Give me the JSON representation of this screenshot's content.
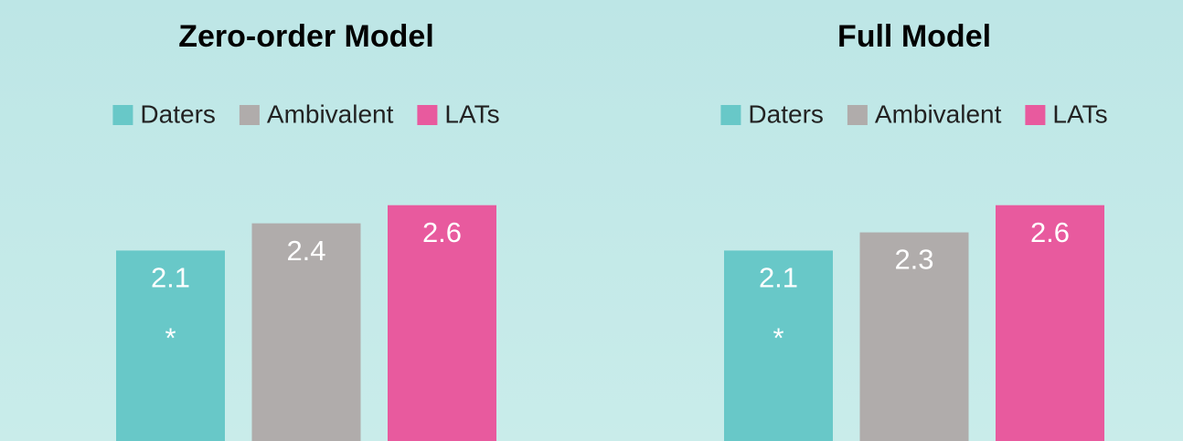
{
  "chart_data": [
    {
      "type": "bar",
      "title": "Zero-order Model",
      "series": [
        {
          "name": "Daters",
          "color": "#68c8c8",
          "values": [
            2.1
          ]
        },
        {
          "name": "Ambivalent",
          "color": "#b0acab",
          "values": [
            2.4
          ]
        },
        {
          "name": "LATs",
          "color": "#e85a9e",
          "values": [
            2.6
          ]
        }
      ],
      "annotation": "*",
      "ylim": [
        0,
        3
      ]
    },
    {
      "type": "bar",
      "title": "Full Model",
      "series": [
        {
          "name": "Daters",
          "color": "#68c8c8",
          "values": [
            2.1
          ]
        },
        {
          "name": "Ambivalent",
          "color": "#b0acab",
          "values": [
            2.3
          ]
        },
        {
          "name": "LATs",
          "color": "#e85a9e",
          "values": [
            2.6
          ]
        }
      ],
      "annotation": "*",
      "ylim": [
        0,
        3
      ]
    }
  ]
}
